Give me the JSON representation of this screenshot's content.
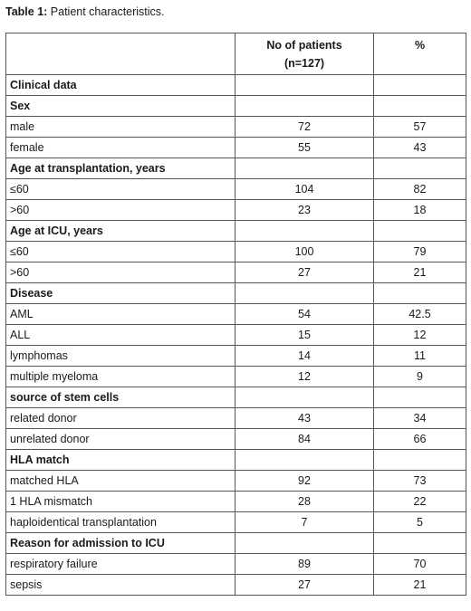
{
  "caption": {
    "prefix": "Table 1:",
    "text": " Patient characteristics."
  },
  "header": {
    "col1": "",
    "col2_line1": "No of patients",
    "col2_line2": "(n=127)",
    "col3": "%"
  },
  "rows": [
    {
      "type": "section",
      "label": "Clinical data"
    },
    {
      "type": "section",
      "label": "Sex"
    },
    {
      "type": "data",
      "label": "male",
      "n": "72",
      "pct": "57"
    },
    {
      "type": "data",
      "label": "female",
      "n": "55",
      "pct": "43"
    },
    {
      "type": "section",
      "label": "Age at transplantation, years"
    },
    {
      "type": "data",
      "label": "≤60",
      "n": "104",
      "pct": "82"
    },
    {
      "type": "data",
      "label": ">60",
      "n": "23",
      "pct": "18"
    },
    {
      "type": "section",
      "label": "Age at ICU, years"
    },
    {
      "type": "data",
      "label": "≤60",
      "n": "100",
      "pct": "79"
    },
    {
      "type": "data",
      "label": ">60",
      "n": "27",
      "pct": "21"
    },
    {
      "type": "section",
      "label": "Disease"
    },
    {
      "type": "data",
      "label": "AML",
      "n": "54",
      "pct": "42.5"
    },
    {
      "type": "data",
      "label": "ALL",
      "n": "15",
      "pct": "12"
    },
    {
      "type": "data",
      "label": "lymphomas",
      "n": "14",
      "pct": "11"
    },
    {
      "type": "data",
      "label": "multiple myeloma",
      "n": "12",
      "pct": "9"
    },
    {
      "type": "section",
      "label": "source of stem cells"
    },
    {
      "type": "data",
      "label": "related donor",
      "n": "43",
      "pct": "34"
    },
    {
      "type": "data",
      "label": "unrelated donor",
      "n": "84",
      "pct": "66"
    },
    {
      "type": "section",
      "label": "HLA match"
    },
    {
      "type": "data",
      "label": "matched HLA",
      "n": "92",
      "pct": "73"
    },
    {
      "type": "data",
      "label": "1 HLA mismatch",
      "n": "28",
      "pct": "22"
    },
    {
      "type": "data",
      "label": "haploidentical transplantation",
      "n": "7",
      "pct": "5"
    },
    {
      "type": "section",
      "label": "Reason for admission to ICU"
    },
    {
      "type": "data",
      "label": "respiratory failure",
      "n": "89",
      "pct": "70"
    },
    {
      "type": "data",
      "label": "sepsis",
      "n": "27",
      "pct": "21"
    }
  ]
}
